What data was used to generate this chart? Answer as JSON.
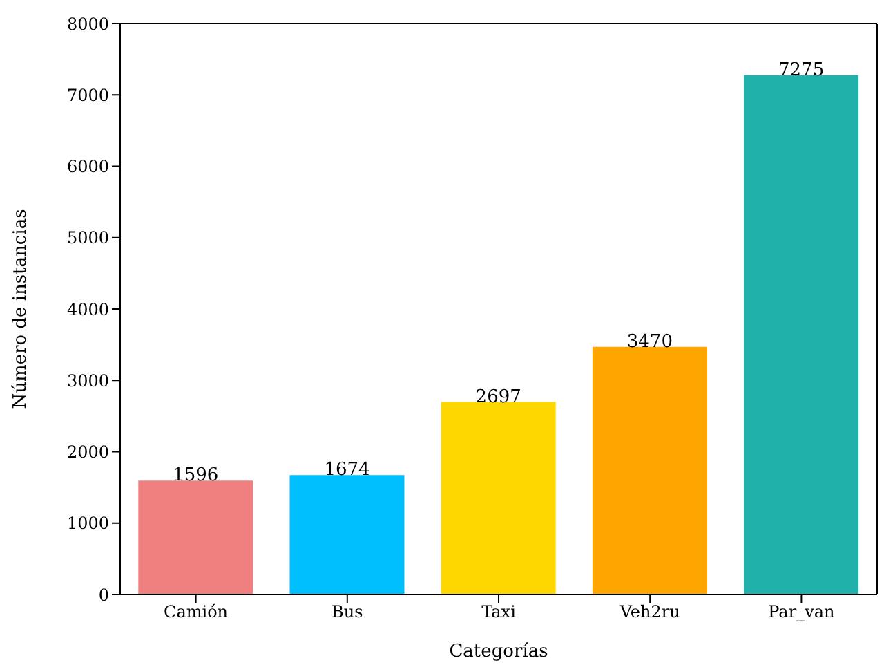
{
  "chart_data": {
    "type": "bar",
    "xlabel": "Categorías",
    "ylabel": "Número de instancias",
    "categories": [
      "Camión",
      "Bus",
      "Taxi",
      "Veh2ru",
      "Par_van"
    ],
    "values": [
      1596,
      1674,
      2697,
      3470,
      7275
    ],
    "colors": [
      "#f08080",
      "#00bfff",
      "#ffd700",
      "#ffa500",
      "#20b2aa"
    ],
    "ylim": [
      0,
      8000
    ],
    "yticks": [
      0,
      1000,
      2000,
      3000,
      4000,
      5000,
      6000,
      7000,
      8000
    ],
    "data_labels": true
  }
}
